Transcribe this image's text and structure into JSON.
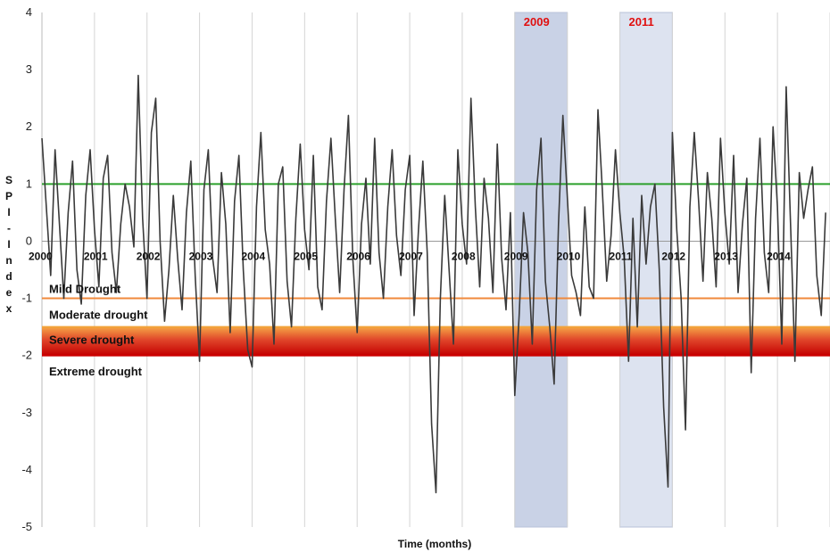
{
  "chart_data": {
    "type": "line",
    "xlabel": "Time (months)",
    "ylabel": "SPI-Index",
    "ylim": [
      -5,
      4
    ],
    "yticks": [
      4,
      3,
      2,
      1,
      0,
      -1,
      -2,
      -3,
      -4,
      -5
    ],
    "year_labels": [
      "2000",
      "2001",
      "2002",
      "2003",
      "2004",
      "2005",
      "2006",
      "2007",
      "2008",
      "2009",
      "2010",
      "2011",
      "2012",
      "2013",
      "2014"
    ],
    "thresholds": [
      {
        "value": 1,
        "color": "#2ca02c"
      },
      {
        "value": -1,
        "color": "#f08a3c"
      },
      {
        "value": -1.5,
        "color": "#f2a33a"
      },
      {
        "value": -2,
        "color": "#cc0000"
      }
    ],
    "bands": [
      {
        "label": "Mild Drought"
      },
      {
        "label": "Moderate drought"
      },
      {
        "label": "Severe drought"
      },
      {
        "label": "Extreme drought"
      }
    ],
    "highlights": [
      {
        "label": "2009",
        "from": 2009.0,
        "to": 2010.0,
        "color": "#c9d2e6"
      },
      {
        "label": "2011",
        "from": 2011.0,
        "to": 2012.0,
        "color": "#dde3f0"
      }
    ],
    "series": [
      {
        "color": "#3a3a3a",
        "x_start": 2000.0,
        "x_step": 0.08333,
        "values": [
          1.8,
          0.6,
          -0.6,
          1.6,
          0.3,
          -1.0,
          0.5,
          1.4,
          -0.5,
          -1.1,
          0.8,
          1.6,
          0.2,
          -0.8,
          1.1,
          1.5,
          -0.2,
          -0.9,
          0.3,
          1.0,
          0.6,
          -0.1,
          2.9,
          0.4,
          -1.0,
          1.9,
          2.5,
          0.0,
          -1.4,
          -0.5,
          0.8,
          -0.3,
          -1.2,
          0.5,
          1.4,
          -0.6,
          -2.1,
          0.9,
          1.6,
          -0.3,
          -0.9,
          1.2,
          0.3,
          -1.6,
          0.7,
          1.5,
          -0.5,
          -1.9,
          -2.2,
          0.6,
          1.9,
          0.2,
          -0.4,
          -1.8,
          1.0,
          1.3,
          -0.7,
          -1.5,
          0.4,
          1.7,
          0.2,
          -0.5,
          1.5,
          -0.8,
          -1.2,
          0.7,
          1.8,
          0.4,
          -0.9,
          0.9,
          2.2,
          -0.3,
          -1.6,
          0.3,
          1.1,
          -0.4,
          1.8,
          -0.2,
          -1.0,
          0.6,
          1.6,
          0.1,
          -0.6,
          0.9,
          1.5,
          -1.3,
          0.2,
          1.4,
          -0.2,
          -3.2,
          -4.4,
          -1.0,
          0.8,
          -0.5,
          -1.8,
          1.6,
          0.3,
          -0.4,
          2.5,
          0.6,
          -0.8,
          1.1,
          0.4,
          -0.9,
          1.7,
          -0.3,
          -1.2,
          0.5,
          -2.7,
          -1.3,
          0.5,
          -0.2,
          -1.8,
          0.9,
          1.8,
          -0.7,
          -1.5,
          -2.5,
          0.3,
          2.2,
          0.8,
          -0.6,
          -0.9,
          -1.3,
          0.6,
          -0.8,
          -1.0,
          2.3,
          0.9,
          -0.7,
          0.1,
          1.6,
          0.5,
          -0.3,
          -2.1,
          0.4,
          -1.5,
          0.8,
          -0.4,
          0.6,
          1.0,
          -0.5,
          -2.9,
          -4.3,
          1.9,
          0.2,
          -1.0,
          -3.3,
          0.6,
          1.9,
          0.7,
          -0.7,
          1.2,
          0.4,
          -0.8,
          1.8,
          0.5,
          -0.4,
          1.5,
          -0.9,
          0.3,
          1.1,
          -2.3,
          0.4,
          1.8,
          -0.2,
          -0.9,
          2.0,
          0.6,
          -1.8,
          2.7,
          0.3,
          -2.1,
          1.2,
          0.4,
          0.9,
          1.3,
          -0.6,
          -1.3,
          0.5
        ]
      }
    ]
  }
}
